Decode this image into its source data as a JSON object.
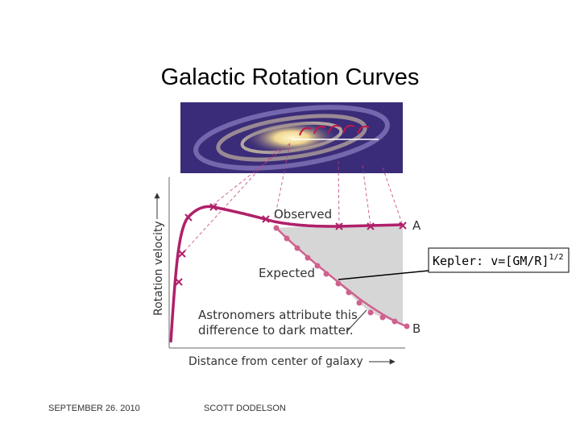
{
  "title": "Galactic Rotation Curves",
  "figure": {
    "observed_label": "Observed",
    "label_a": "A",
    "expected_label": "Expected",
    "note_lines": [
      "Astronomers attribute this",
      "difference to dark matter."
    ],
    "label_b": "B",
    "y_axis_label": "Rotation velocity",
    "x_axis_label": "Distance from center of galaxy"
  },
  "callout": {
    "text": "Kepler: v=[GM/R]",
    "superscript": "1/2"
  },
  "footer": {
    "date": "SEPTEMBER 26. 2010",
    "author": "SCOTT DODELSON"
  }
}
